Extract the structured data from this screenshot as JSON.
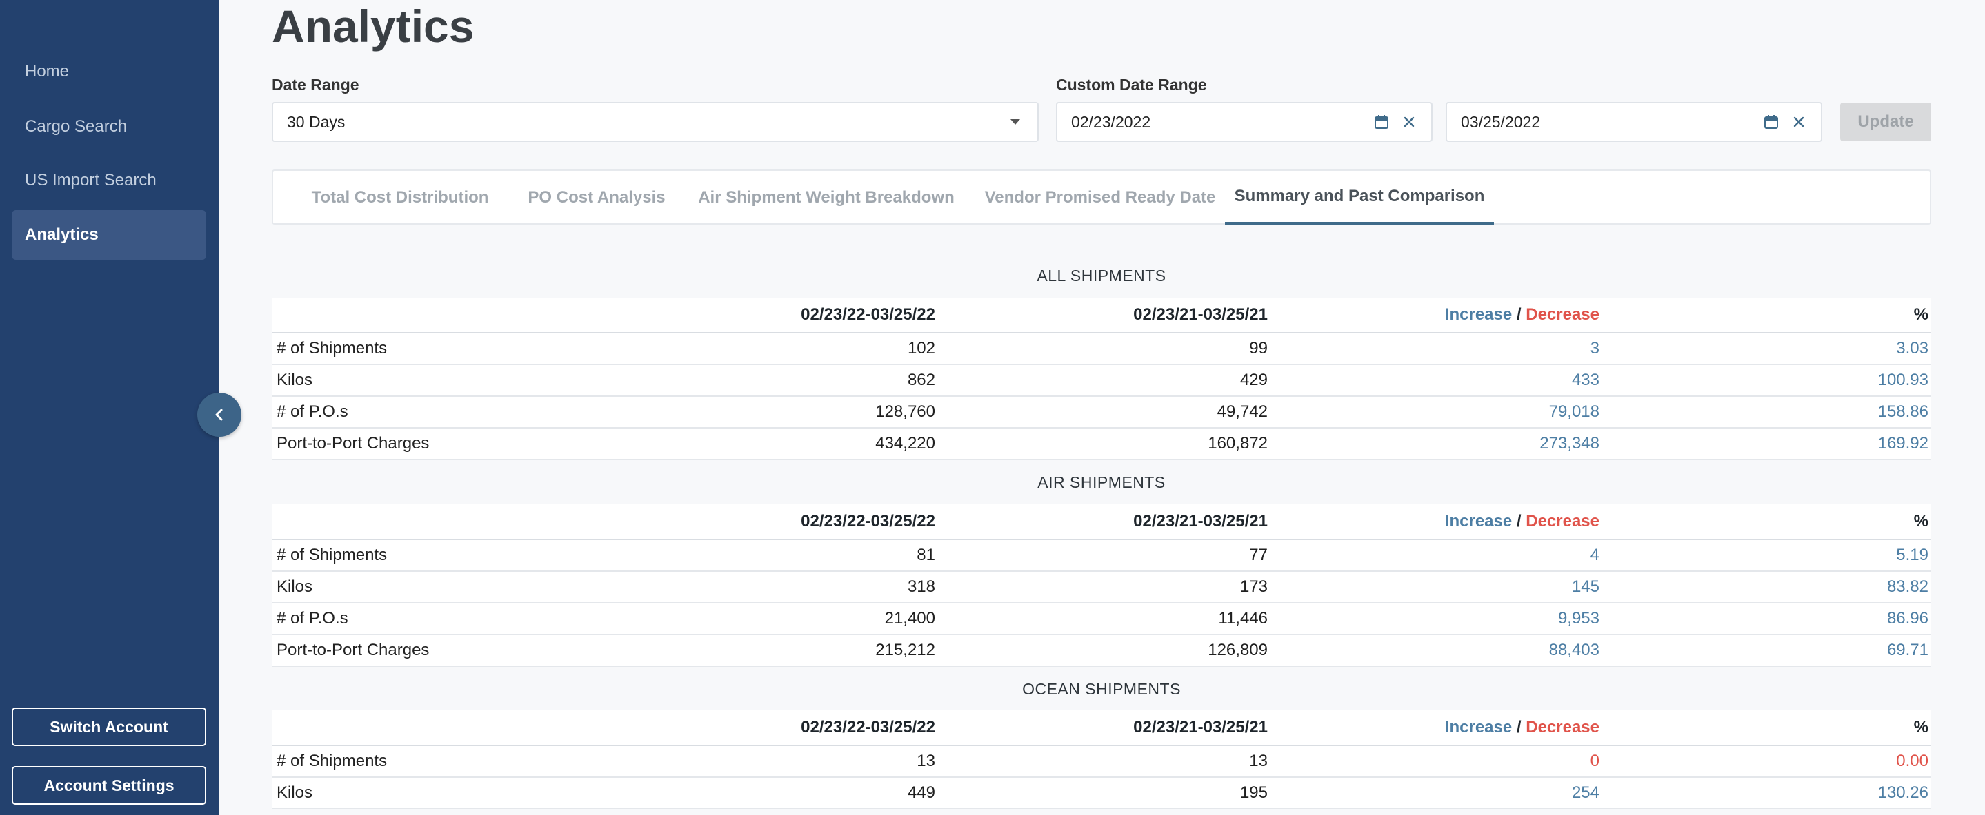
{
  "colors": {
    "sidebar": "#23416e",
    "accent_blue": "#4d7ea4",
    "accent_red": "#e0534a",
    "tab_active": "#3f6b8a"
  },
  "sidebar": {
    "items": [
      {
        "label": "Home",
        "active": false
      },
      {
        "label": "Cargo Search",
        "active": false
      },
      {
        "label": "US Import Search",
        "active": false
      },
      {
        "label": "Analytics",
        "active": true
      }
    ],
    "switch_account": "Switch Account",
    "account_settings": "Account Settings"
  },
  "page": {
    "title": "Analytics",
    "date_range_label": "Date Range",
    "date_range_value": "30 Days",
    "custom_range_label": "Custom Date Range",
    "start_date": "02/23/2022",
    "end_date": "03/25/2022",
    "update_label": "Update"
  },
  "tabs": [
    {
      "label": "Total Cost Distribution",
      "active": false
    },
    {
      "label": "PO Cost Analysis",
      "active": false
    },
    {
      "label": "Air Shipment Weight Breakdown",
      "active": false
    },
    {
      "label": "Vendor Promised Ready Date",
      "active": false
    },
    {
      "label": "Summary and Past Comparison",
      "active": true
    }
  ],
  "table_headers": {
    "current": "02/23/22-03/25/22",
    "previous": "02/23/21-03/25/21",
    "increase": "Increase",
    "slash": "/",
    "decrease": "Decrease",
    "percent": "%"
  },
  "sections": [
    {
      "title": "ALL SHIPMENTS",
      "rows": [
        {
          "label": "# of Shipments",
          "current": "102",
          "previous": "99",
          "diff": "3",
          "pct": "3.03",
          "trend": "up"
        },
        {
          "label": "Kilos",
          "current": "862",
          "previous": "429",
          "diff": "433",
          "pct": "100.93",
          "trend": "up"
        },
        {
          "label": "# of P.O.s",
          "current": "128,760",
          "previous": "49,742",
          "diff": "79,018",
          "pct": "158.86",
          "trend": "up"
        },
        {
          "label": "Port-to-Port Charges",
          "current": "434,220",
          "previous": "160,872",
          "diff": "273,348",
          "pct": "169.92",
          "trend": "up"
        }
      ]
    },
    {
      "title": "AIR SHIPMENTS",
      "rows": [
        {
          "label": "# of Shipments",
          "current": "81",
          "previous": "77",
          "diff": "4",
          "pct": "5.19",
          "trend": "up"
        },
        {
          "label": "Kilos",
          "current": "318",
          "previous": "173",
          "diff": "145",
          "pct": "83.82",
          "trend": "up"
        },
        {
          "label": "# of P.O.s",
          "current": "21,400",
          "previous": "11,446",
          "diff": "9,953",
          "pct": "86.96",
          "trend": "up"
        },
        {
          "label": "Port-to-Port Charges",
          "current": "215,212",
          "previous": "126,809",
          "diff": "88,403",
          "pct": "69.71",
          "trend": "up"
        }
      ]
    },
    {
      "title": "OCEAN SHIPMENTS",
      "rows": [
        {
          "label": "# of Shipments",
          "current": "13",
          "previous": "13",
          "diff": "0",
          "pct": "0.00",
          "trend": "down"
        },
        {
          "label": "Kilos",
          "current": "449",
          "previous": "195",
          "diff": "254",
          "pct": "130.26",
          "trend": "up"
        }
      ]
    }
  ]
}
